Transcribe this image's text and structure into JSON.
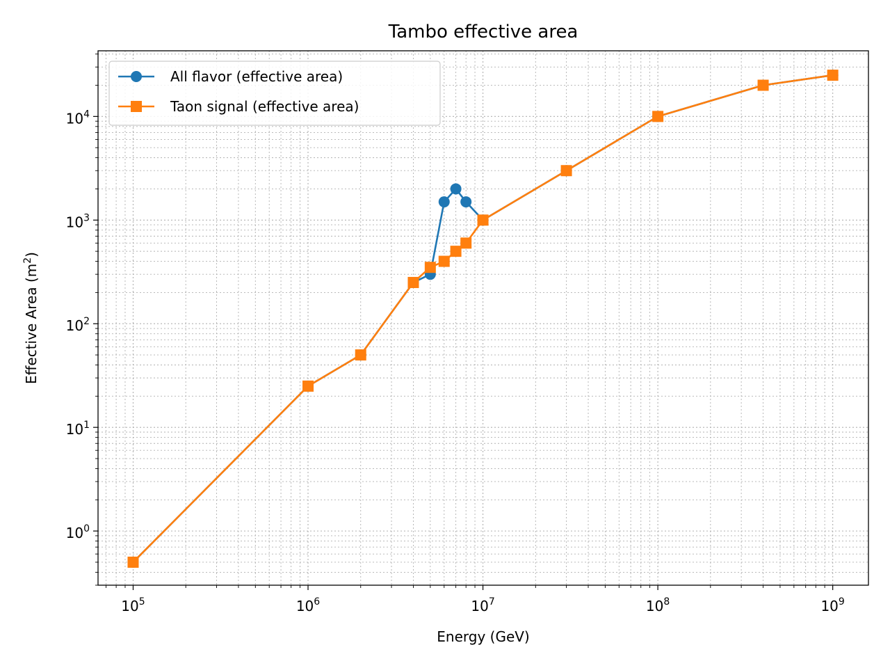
{
  "chart_data": {
    "type": "line",
    "title": "Tambo effective area",
    "xlabel": "Energy (GeV)",
    "ylabel": "Effective Area (m",
    "ylabel_sup": "2",
    "ylabel_close": ")",
    "xscale": "log",
    "yscale": "log",
    "xlim": [
      63000,
      1600000000
    ],
    "ylim": [
      0.3,
      43000
    ],
    "xticks": [
      {
        "value": 100000,
        "base": "10",
        "exp": "5"
      },
      {
        "value": 1000000,
        "base": "10",
        "exp": "6"
      },
      {
        "value": 10000000,
        "base": "10",
        "exp": "7"
      },
      {
        "value": 100000000,
        "base": "10",
        "exp": "8"
      },
      {
        "value": 1000000000,
        "base": "10",
        "exp": "9"
      }
    ],
    "yticks": [
      {
        "value": 1,
        "base": "10",
        "exp": "0"
      },
      {
        "value": 10,
        "base": "10",
        "exp": "1"
      },
      {
        "value": 100,
        "base": "10",
        "exp": "2"
      },
      {
        "value": 1000,
        "base": "10",
        "exp": "3"
      },
      {
        "value": 10000,
        "base": "10",
        "exp": "4"
      }
    ],
    "grid": "major and minor, dotted",
    "legend_position": "top-left",
    "series": [
      {
        "name": "All flavor (effective area)",
        "color": "#1f77b4",
        "marker": "circle",
        "x": [
          100000,
          1000000,
          2000000,
          4000000,
          5000000,
          6000000,
          7000000,
          8000000,
          10000000,
          30000000,
          100000000,
          400000000,
          1000000000
        ],
        "y": [
          0.5,
          25,
          50,
          250,
          300,
          1500,
          2000,
          1500,
          1000,
          3000,
          10000,
          20000,
          25000
        ]
      },
      {
        "name": "Taon signal (effective area)",
        "color": "#ff7f0e",
        "marker": "square",
        "x": [
          100000,
          1000000,
          2000000,
          4000000,
          5000000,
          6000000,
          7000000,
          8000000,
          10000000,
          30000000,
          100000000,
          400000000,
          1000000000
        ],
        "y": [
          0.5,
          25,
          50,
          250,
          350,
          400,
          500,
          600,
          1000,
          3000,
          10000,
          20000,
          25000
        ]
      }
    ]
  }
}
